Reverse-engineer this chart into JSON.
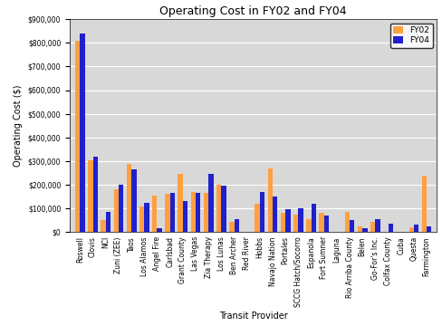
{
  "title": "Operating Cost in FY02 and FY04",
  "xlabel": "Transit Provider",
  "ylabel": "Operating Cost ($)",
  "categories": [
    "Roswell",
    "Clovis",
    "NCI",
    "Zuni (ZEE)",
    "Taos",
    "Los Alamos",
    "Angel Fire",
    "Carlsbad",
    "Grant County",
    "Las Vegas",
    "Zia Therapy",
    "Los Lunas",
    "Ben Archer",
    "Red River",
    "Hobbs",
    "Navajo Nation",
    "Portales",
    "SCCG Hatch/Socorro",
    "Espanola",
    "Fort Sumner",
    "Laguna",
    "Rio Arriba County",
    "Belen",
    "Go-For's Inc.",
    "Colfax County",
    "Cuba",
    "Questa",
    "Farmington"
  ],
  "fy02": [
    810000,
    305000,
    50000,
    180000,
    290000,
    110000,
    155000,
    160000,
    245000,
    170000,
    165000,
    200000,
    45000,
    0,
    120000,
    270000,
    80000,
    75000,
    55000,
    80000,
    0,
    85000,
    25000,
    45000,
    0,
    0,
    20000,
    240000
  ],
  "fy04": [
    840000,
    320000,
    85000,
    200000,
    265000,
    125000,
    15000,
    165000,
    130000,
    165000,
    245000,
    195000,
    55000,
    0,
    170000,
    150000,
    95000,
    100000,
    120000,
    70000,
    0,
    50000,
    15000,
    55000,
    35000,
    0,
    30000,
    25000
  ],
  "color_fy02": "#FFA040",
  "color_fy04": "#2020CC",
  "bg_color": "#C8C8C8",
  "plot_bg": "#D8D8D8",
  "ylim": [
    0,
    900000
  ],
  "yticks": [
    0,
    100000,
    200000,
    300000,
    400000,
    500000,
    600000,
    700000,
    800000,
    900000
  ],
  "title_fontsize": 9,
  "axis_label_fontsize": 7,
  "tick_fontsize": 5.5,
  "legend_fontsize": 6.5,
  "bar_width": 0.38
}
